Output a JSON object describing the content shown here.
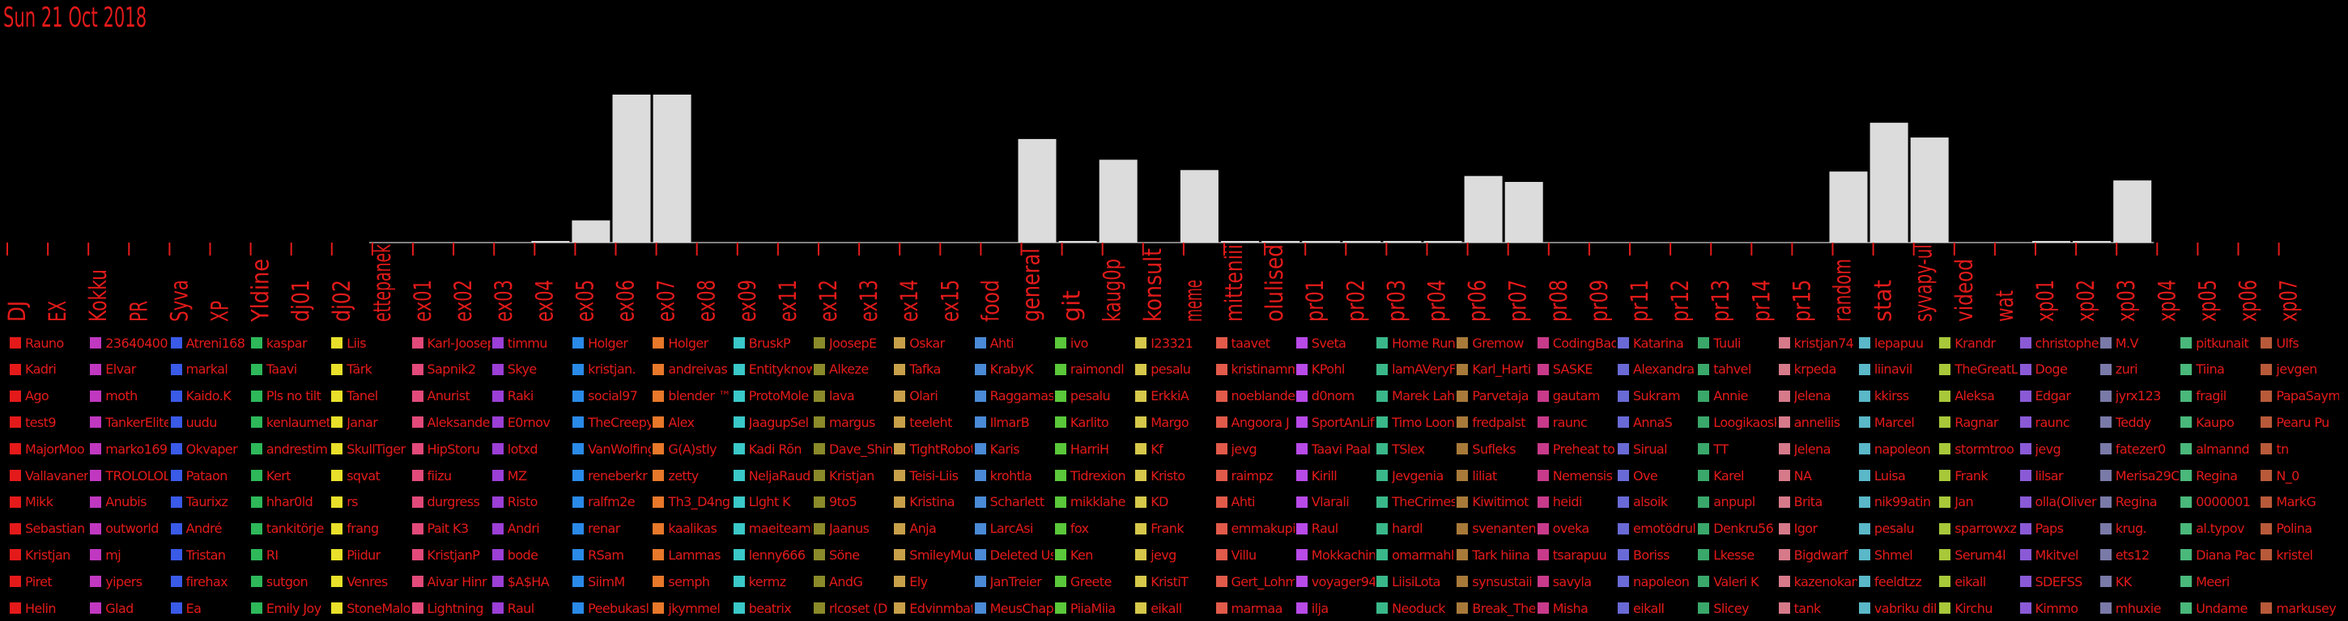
{
  "date_label": "Sun 21 Oct 2018",
  "colors": {
    "bar": "#dcdcdc",
    "axis": "#e41a1a",
    "text": "#e41a1a",
    "baseline": "#ffffff"
  },
  "chart_data": {
    "type": "bar",
    "title": "",
    "xlabel": "",
    "ylabel": "",
    "ylim": [
      0,
      100
    ],
    "categories": [
      "DJ",
      "EX",
      "Kokku",
      "PR",
      "Syva",
      "XP",
      "Yldine",
      "dj01",
      "dj02",
      "ettepanek",
      "ex01",
      "ex02",
      "ex03",
      "ex04",
      "ex05",
      "ex06",
      "ex07",
      "ex08",
      "ex09",
      "ex11",
      "ex12",
      "ex13",
      "ex14",
      "ex15",
      "food",
      "general",
      "git",
      "kaug0p",
      "konsult",
      "meme",
      "mitteniii",
      "olulised",
      "pr01",
      "pr02",
      "pr03",
      "pr04",
      "pr06",
      "pr07",
      "pr08",
      "pr09",
      "pr11",
      "pr12",
      "pr13",
      "pr14",
      "pr15",
      "random",
      "stat",
      "syvapy-ul",
      "videod",
      "wat",
      "xp01",
      "xp02",
      "xp03",
      "xp04",
      "xp05",
      "xp06",
      "xp07"
    ],
    "values": [
      0,
      0,
      0,
      0,
      0,
      0,
      0,
      0,
      0,
      0,
      0,
      0,
      0,
      1,
      15,
      100,
      100,
      0,
      0,
      0,
      0,
      0,
      0,
      0,
      0,
      70,
      1,
      56,
      0,
      49,
      1,
      1,
      1,
      1,
      1,
      1,
      45,
      41,
      0,
      0,
      0,
      0,
      0,
      0,
      0,
      48,
      81,
      71,
      0,
      0,
      1,
      1,
      42,
      0,
      0,
      0,
      0
    ]
  },
  "legend": {
    "columns": [
      {
        "color": "#e41a1a",
        "names": [
          "Rauno",
          "Kadri",
          "Ago",
          "test9",
          "MajorMoo",
          "Vallavanem",
          "Mikk",
          "Sebastian",
          "Kristjan",
          "Piret",
          "Helin"
        ]
      },
      {
        "color": "#c038c0",
        "names": [
          "23640400",
          "Elvar",
          "moth",
          "TankerElite",
          "marko169",
          "TROLOLOL",
          "Anubis",
          "outworld",
          "mj",
          "yipers",
          "Glad"
        ]
      },
      {
        "color": "#3a5ae8",
        "names": [
          "Atreni168",
          "markal",
          "Kaido.K",
          "uudu",
          "Okvaper",
          "Pataon",
          "Taurixz",
          "André",
          "Tristan",
          "firehax",
          "Ea"
        ]
      },
      {
        "color": "#2eb85a",
        "names": [
          "kaspar",
          "Taavi",
          "Pls no tilt",
          "kenlaumet",
          "andrestim",
          "Kert",
          "hhar0ld",
          "tankitörje",
          "RI",
          "sutgon",
          "Emily Joy"
        ]
      },
      {
        "color": "#e8e02a",
        "names": [
          "Liis",
          "Tärk",
          "Tanel",
          "Janar",
          "SkullTiger",
          "sqvat",
          "rs",
          "frang",
          "Piidur",
          "Venres",
          "StoneMalo"
        ]
      },
      {
        "color": "#e24a7a",
        "names": [
          "Karl-Joosep",
          "Sapnik2",
          "Anurist",
          "Aleksander",
          "HipStoru",
          "fiizu",
          "durgress",
          "Pait K3",
          "KristjanP",
          "Aivar Hinr",
          "Lightning"
        ]
      },
      {
        "color": "#9b3fd6",
        "names": [
          "timmu",
          "Skye",
          "Raki",
          "E0rnov",
          "lotxd",
          "MZ",
          "Risto",
          "Andri",
          "bode",
          "$A$HA",
          "Raul"
        ]
      },
      {
        "color": "#2a8ae8",
        "names": [
          "Holger",
          "kristjan.",
          "social97",
          "TheCreepy",
          "VanWolfing",
          "reneberkr",
          "ralfm2e",
          "renar",
          "RSam",
          "SiimM",
          "Peebukasl"
        ]
      },
      {
        "color": "#e8782a",
        "names": [
          "Holger",
          "andreivas",
          "blender ™",
          "Alex",
          "G(A)stly",
          "zetty",
          "Th3_D4ng",
          "kaalikas",
          "Lammas",
          "semph",
          "jkymmel"
        ]
      },
      {
        "color": "#3ac8c8",
        "names": [
          "BruskP",
          "Entityknow",
          "ProtoMole",
          "JaagupSel",
          "Kadi Rõn",
          "NeljaRaud",
          "Llght K",
          "maeiteami",
          "lenny666",
          "kermz",
          "beatrix"
        ]
      },
      {
        "color": "#8a8a2a",
        "names": [
          "JoosepE",
          "Alkeze",
          "lava",
          "margus",
          "Dave_Shin",
          "Kristjan",
          "9to5",
          "Jaanus",
          "Söne",
          "AndG",
          "rlcoset (D"
        ]
      },
      {
        "color": "#c8a04a",
        "names": [
          "Oskar",
          "Tafka",
          "Olari",
          "teeleht",
          "TightRobot",
          "Teisi-Liis",
          "Kristina",
          "Anja",
          "SmileyMuu",
          "Ely",
          "Edvinmbaf"
        ]
      },
      {
        "color": "#4a8ad6",
        "names": [
          "Ahti",
          "KrabyK",
          "Raggamas",
          "IlmarB",
          "Karis",
          "krohtla",
          "Scharlett",
          "LarcAsi",
          "Deleted Us",
          "JanTreier",
          "MeusChap"
        ]
      },
      {
        "color": "#5ac83a",
        "names": [
          "ivo",
          "raimondl",
          "pesalu",
          "Karlito",
          "HarriH",
          "Tidrexion",
          "mikklahe",
          "fox",
          "Ken",
          "Greete",
          "PiiaMiia"
        ]
      },
      {
        "color": "#d6c84a",
        "names": [
          "I23321",
          "pesalu",
          "ErkkiA",
          "Margo",
          "Kf",
          "Kristo",
          "KD",
          "Frank",
          "jevg",
          "KristiT",
          "eikall"
        ]
      },
      {
        "color": "#e25a4a",
        "names": [
          "taavet",
          "kristinamm",
          "noeblande",
          "Angoora J",
          "jevg",
          "raimpz",
          "Ahti",
          "emmakupi",
          "Villu",
          "Gert_Lohm",
          "marmaa"
        ]
      },
      {
        "color": "#b84ae8",
        "names": [
          "Sveta",
          "KPohl",
          "d0nom",
          "SportAnLif",
          "Taavi Paal",
          "Kirill",
          "Vlarali",
          "Raul",
          "Mokkachin",
          "voyager94",
          "ilja"
        ]
      },
      {
        "color": "#3ab88a",
        "names": [
          "Home Run",
          "lamAVeryF",
          "Marek Lah",
          "Timo Loon",
          "TSlex",
          "Jevgenia",
          "TheCrimes",
          "hardl",
          "omarmahl",
          "LiisiLota",
          "Neoduck"
        ]
      },
      {
        "color": "#a87a3a",
        "names": [
          "Gremow",
          "Karl_Harti",
          "Parvetaja",
          "fredpalst",
          "Sufleks",
          "liliat",
          "Kiwitimot",
          "svenanten",
          "Tark hiina",
          "synsustaii",
          "Break_The"
        ]
      },
      {
        "color": "#c83a8a",
        "names": [
          "CodingBad",
          "SASKE",
          "gautam",
          "raunc",
          "Preheat to",
          "Nemensis",
          "heidi",
          "oveka",
          "tsarapuu",
          "savyla",
          "Misha"
        ]
      },
      {
        "color": "#6a6ad6",
        "names": [
          "Katarina",
          "Alexandra",
          "Sukram",
          "AnnaS",
          "Sirual",
          "Ove",
          "alsoik",
          "emotödrul",
          "Boriss",
          "napoleon",
          "eikall"
        ]
      },
      {
        "color": "#3aa86a",
        "names": [
          "Tuuli",
          "tahvel",
          "Annie",
          "Loogikaosk",
          "TT",
          "Karel",
          "anpupl",
          "Denkru56",
          "Lkesse",
          "Valeri K",
          "Slicey"
        ]
      },
      {
        "color": "#d67a8a",
        "names": [
          "kristjan74",
          "krpeda",
          "Jelena",
          "anneliis",
          "Jelena",
          "NA",
          "Brita",
          "Igor",
          "Bigdwarf",
          "kazenokan",
          "tank"
        ]
      },
      {
        "color": "#5ab8c8",
        "names": [
          "lepapuu",
          "liinavil",
          "kkirss",
          "Marcel",
          "napoleon",
          "Luisa",
          "nik99atin",
          "pesalu",
          "Shmel",
          "feeldtzz",
          "vabriku dil"
        ]
      },
      {
        "color": "#a8c83a",
        "names": [
          "Krandr",
          "TheGreatL",
          "Aleksa",
          "Ragnar",
          "stormtroo",
          "Frank",
          "Jan",
          "sparrowxz",
          "Serum4l",
          "eikall",
          "Kirchu"
        ]
      },
      {
        "color": "#8a5ad6",
        "names": [
          "christophe",
          "Doge",
          "Edgar",
          "raunc",
          "jevg",
          "lilsar",
          "olla(Oliver",
          "Paps",
          "Mkitvel",
          "SDEFSS",
          "Kimmo"
        ]
      },
      {
        "color": "#7a7aa8",
        "names": [
          "M.V",
          "zuri",
          "jyrx123",
          "Teddy",
          "fatezer0",
          "Merisa29C",
          "Regina",
          "krug.",
          "ets12",
          "KK",
          "mhuxie"
        ]
      },
      {
        "color": "#4ab87a",
        "names": [
          "pitkunait",
          "Tiina",
          "fragil",
          "Kaupo",
          "almannd",
          "Regina",
          "0000001",
          "al.typov",
          "Diana Pac",
          "Meeri",
          "Undame"
        ]
      },
      {
        "color": "#b85a3a",
        "names": [
          "Ulfs",
          "jevgen",
          "PapaSaym",
          "Pearu Pu",
          "tn",
          "N_0",
          "MarkG",
          "Polina",
          "kristel",
          "",
          "markusey"
        ]
      }
    ]
  }
}
